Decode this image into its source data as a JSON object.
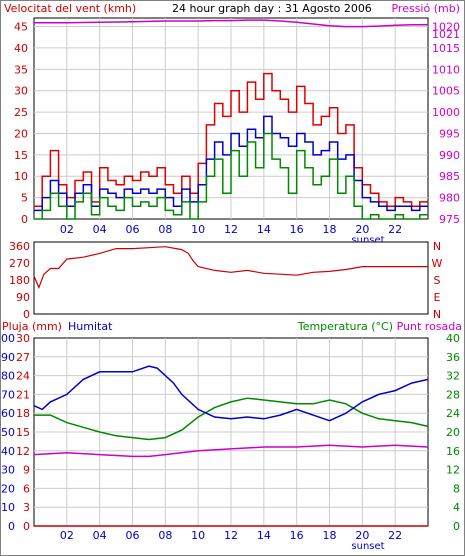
{
  "chart_data": [
    {
      "type": "line",
      "title": "24 hour graph day : 31 Agosto 2006",
      "left_axis_label": "Velocitat del vent (kmh)",
      "right_axis_label": "Pressió (mb)",
      "left_ticks": [
        "0",
        "5",
        "10",
        "15",
        "20",
        "25",
        "30",
        "35",
        "40",
        "45"
      ],
      "right_ticks": [
        "975",
        "980",
        "985",
        "990",
        "995",
        "1000",
        "1005",
        "1010",
        "1015",
        "1020"
      ],
      "right_ticks_extra": "1021",
      "ylim_left": [
        0,
        47
      ],
      "ylim_right": [
        975,
        1022
      ],
      "x_ticks": [
        "02",
        "04",
        "06",
        "08",
        "10",
        "12",
        "14",
        "16",
        "18",
        "20",
        "22"
      ],
      "xlim": [
        0,
        24
      ],
      "sunset_label": "sunset",
      "sunset_hour": 20,
      "grid": true,
      "series": [
        {
          "key": "pressure",
          "color": "#cc00cc",
          "axis": "right",
          "x": [
            0,
            2,
            4,
            6,
            8,
            10,
            11,
            12,
            13,
            14,
            15,
            16,
            17,
            18,
            19,
            20,
            21,
            22,
            23,
            24
          ],
          "y": [
            1020.9,
            1020.9,
            1021.0,
            1021.1,
            1021.3,
            1021.3,
            1021.4,
            1021.4,
            1021.5,
            1021.5,
            1021.3,
            1021.0,
            1020.6,
            1020.2,
            1020.0,
            1020.0,
            1020.1,
            1020.3,
            1020.4,
            1020.4
          ]
        },
        {
          "key": "gust",
          "color": "#dd0000",
          "axis": "left",
          "x": [
            0,
            0.5,
            1,
            1.5,
            2,
            2.5,
            3,
            3.5,
            4,
            4.5,
            5,
            5.5,
            6,
            6.5,
            7,
            7.5,
            8,
            8.5,
            9,
            9.5,
            10,
            10.5,
            11,
            11.5,
            12,
            12.5,
            13,
            13.5,
            14,
            14.5,
            15,
            15.5,
            16,
            16.5,
            17,
            17.5,
            18,
            18.5,
            19,
            19.5,
            20,
            20.5,
            21,
            21.5,
            22,
            22.5,
            23,
            23.5
          ],
          "y": [
            3,
            10,
            16,
            8,
            5,
            9,
            11,
            4,
            12,
            9,
            8,
            10,
            9,
            11,
            10,
            12,
            8,
            6,
            10,
            6,
            13,
            22,
            27,
            24,
            30,
            25,
            32,
            28,
            34,
            30,
            28,
            25,
            31,
            27,
            22,
            24,
            26,
            20,
            22,
            12,
            8,
            6,
            4,
            3,
            5,
            4,
            3,
            4
          ]
        },
        {
          "key": "mean",
          "color": "#0000cc",
          "axis": "left",
          "x": [
            0,
            0.5,
            1,
            1.5,
            2,
            2.5,
            3,
            3.5,
            4,
            4.5,
            5,
            5.5,
            6,
            6.5,
            7,
            7.5,
            8,
            8.5,
            9,
            9.5,
            10,
            10.5,
            11,
            11.5,
            12,
            12.5,
            13,
            13.5,
            14,
            14.5,
            15,
            15.5,
            16,
            16.5,
            17,
            17.5,
            18,
            18.5,
            19,
            19.5,
            20,
            20.5,
            21,
            21.5,
            22,
            22.5,
            23,
            23.5
          ],
          "y": [
            2,
            5,
            9,
            6,
            3,
            6,
            8,
            3,
            7,
            6,
            5,
            7,
            6,
            7,
            6,
            7,
            5,
            3,
            7,
            4,
            8,
            14,
            18,
            15,
            20,
            17,
            21,
            19,
            24,
            20,
            19,
            17,
            20,
            18,
            15,
            16,
            18,
            14,
            15,
            9,
            5,
            4,
            3,
            2,
            3,
            3,
            2,
            3
          ]
        },
        {
          "key": "low",
          "color": "#008800",
          "axis": "left",
          "x": [
            0,
            0.5,
            1,
            1.5,
            2,
            2.5,
            3,
            3.5,
            4,
            4.5,
            5,
            5.5,
            6,
            6.5,
            7,
            7.5,
            8,
            8.5,
            9,
            9.5,
            10,
            10.5,
            11,
            11.5,
            12,
            12.5,
            13,
            13.5,
            14,
            14.5,
            15,
            15.5,
            16,
            16.5,
            17,
            17.5,
            18,
            18.5,
            19,
            19.5,
            20,
            20.5,
            21,
            21.5,
            22,
            22.5,
            23,
            23.5
          ],
          "y": [
            0,
            2,
            6,
            3,
            0,
            4,
            6,
            1,
            5,
            3,
            2,
            5,
            3,
            4,
            3,
            5,
            2,
            1,
            4,
            0,
            4,
            10,
            14,
            6,
            16,
            10,
            18,
            12,
            20,
            14,
            12,
            6,
            16,
            12,
            8,
            10,
            14,
            6,
            10,
            3,
            0,
            1,
            0,
            0,
            1,
            0,
            0,
            1
          ]
        }
      ]
    },
    {
      "type": "line",
      "ylabel_right_letters": [
        "N",
        "W",
        "S",
        "E",
        "N"
      ],
      "left_ticks": [
        "0",
        "90",
        "180",
        "270",
        "360"
      ],
      "ylim": [
        0,
        380
      ],
      "xlim": [
        0,
        24
      ],
      "grid": false,
      "series": [
        {
          "key": "direction",
          "color": "#cc0000",
          "x": [
            0,
            0.3,
            0.6,
            1,
            1.5,
            2,
            3,
            4,
            5,
            6,
            7,
            8,
            9,
            9.4,
            9.7,
            10,
            11,
            12,
            13,
            14,
            15,
            16,
            17,
            18,
            19,
            20,
            21,
            22,
            23,
            24
          ],
          "y": [
            200,
            140,
            210,
            240,
            240,
            290,
            300,
            320,
            345,
            345,
            350,
            355,
            340,
            320,
            280,
            250,
            230,
            220,
            230,
            215,
            210,
            205,
            220,
            225,
            235,
            250,
            250,
            250,
            250,
            250
          ]
        }
      ]
    },
    {
      "type": "line",
      "left_axis_label_rain": "Pluja (mm)",
      "left_axis_label_humidity": "Humitat",
      "right_axis_label_temp": "Temperatura (°C)",
      "right_axis_label_dew": "Punt rosada",
      "humidity_ticks": [
        "0",
        "10",
        "20",
        "30",
        "40",
        "50",
        "60",
        "70",
        "80",
        "90",
        "100"
      ],
      "rain_ticks": [
        "0",
        "3",
        "6",
        "9",
        "12",
        "15",
        "18",
        "21",
        "24",
        "27",
        "30"
      ],
      "temp_ticks": [
        "0",
        "4",
        "8",
        "12",
        "16",
        "20",
        "24",
        "28",
        "32",
        "36",
        "40"
      ],
      "ylim_humidity": [
        0,
        100
      ],
      "ylim_temp": [
        0,
        40
      ],
      "x_ticks": [
        "02",
        "04",
        "06",
        "08",
        "10",
        "12",
        "14",
        "16",
        "18",
        "20",
        "22"
      ],
      "xlim": [
        0,
        24
      ],
      "sunset_label": "sunset",
      "grid": true,
      "series": [
        {
          "key": "humidity",
          "color": "#0000cc",
          "axis": "left",
          "x": [
            0,
            0.5,
            1,
            2,
            3,
            4,
            5,
            6,
            7,
            7.5,
            8,
            8.5,
            9,
            10,
            11,
            12,
            13,
            14,
            15,
            16,
            17,
            18,
            19,
            20,
            21,
            22,
            23,
            24
          ],
          "y": [
            64,
            62,
            66,
            70,
            78,
            82,
            82,
            82,
            85,
            84,
            80,
            76,
            70,
            62,
            58,
            57,
            58,
            57,
            59,
            62,
            59,
            56,
            60,
            66,
            70,
            72,
            76,
            78
          ]
        },
        {
          "key": "temperature",
          "color": "#008800",
          "axis": "right",
          "x": [
            0,
            1,
            2,
            3,
            4,
            5,
            6,
            7,
            8,
            9,
            10,
            11,
            12,
            13,
            14,
            15,
            16,
            17,
            18,
            19,
            20,
            21,
            22,
            23,
            24
          ],
          "y": [
            23.6,
            23.6,
            22,
            21,
            20,
            19.2,
            18.8,
            18.4,
            18.8,
            20.4,
            23.2,
            25.2,
            26.4,
            27.2,
            26.8,
            26.4,
            26.0,
            26.0,
            26.8,
            26.0,
            24.0,
            22.8,
            22.4,
            22,
            21.2
          ]
        },
        {
          "key": "dewpoint",
          "color": "#cc00cc",
          "axis": "right",
          "x": [
            0,
            2,
            4,
            6,
            7,
            8,
            10,
            12,
            14,
            16,
            18,
            20,
            22,
            24
          ],
          "y": [
            15.2,
            15.6,
            15.2,
            14.8,
            14.8,
            15.2,
            16.0,
            16.4,
            16.8,
            16.8,
            17.2,
            16.8,
            17.2,
            16.8
          ]
        },
        {
          "key": "rain",
          "color": "#cc0000",
          "axis": "left_rain",
          "x": [
            0,
            24
          ],
          "y": [
            0,
            0
          ]
        }
      ]
    }
  ]
}
